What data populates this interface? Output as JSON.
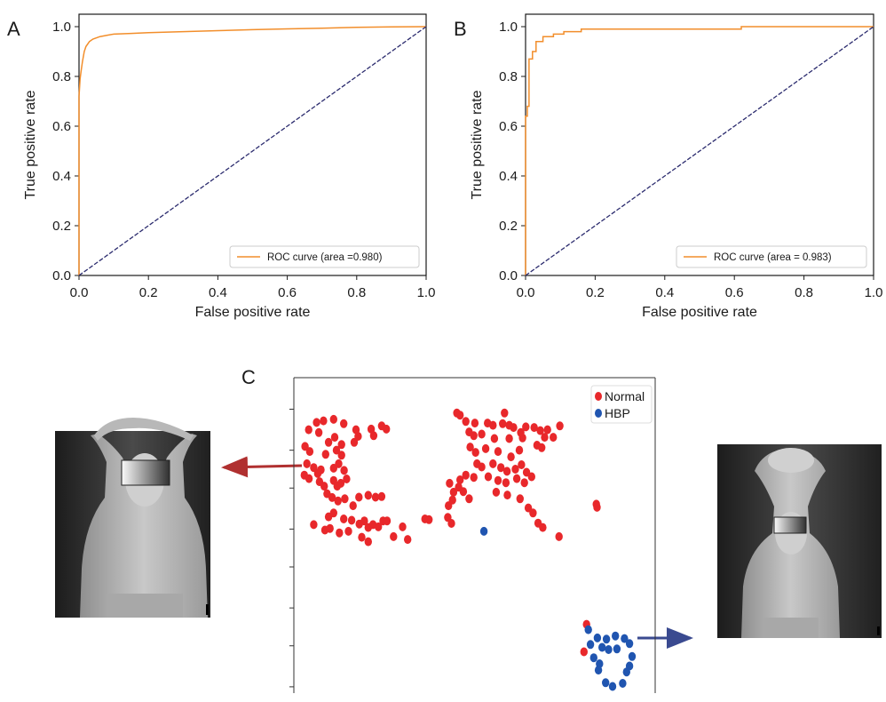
{
  "chart_data": [
    {
      "type": "line",
      "panel_label": "A",
      "xlabel": "False positive rate",
      "ylabel": "True positive rate",
      "xlim": [
        0.0,
        1.0
      ],
      "ylim": [
        0.0,
        1.05
      ],
      "xticks": [
        "0.0",
        "0.2",
        "0.4",
        "0.6",
        "0.8",
        "1.0"
      ],
      "yticks": [
        "0.0",
        "0.2",
        "0.4",
        "0.6",
        "0.8",
        "1.0"
      ],
      "legend": "ROC curve (area =0.980)",
      "legend_position": "lower-right",
      "series": [
        {
          "name": "ROC curve (area =0.980)",
          "color": "#f28e2b",
          "x": [
            0.0,
            0.0,
            0.003,
            0.006,
            0.01,
            0.015,
            0.02,
            0.03,
            0.04,
            0.06,
            0.08,
            0.1,
            0.15,
            0.2,
            0.3,
            0.4,
            0.5,
            0.6,
            0.7,
            0.8,
            0.9,
            1.0
          ],
          "y": [
            0.0,
            0.72,
            0.79,
            0.82,
            0.86,
            0.9,
            0.92,
            0.94,
            0.95,
            0.96,
            0.965,
            0.97,
            0.973,
            0.976,
            0.98,
            0.984,
            0.988,
            0.991,
            0.994,
            0.997,
            0.999,
            1.0
          ]
        },
        {
          "name": "",
          "color": "#2b2b6e",
          "style": "dashed",
          "x": [
            0.0,
            1.0
          ],
          "y": [
            0.0,
            1.0
          ]
        }
      ]
    },
    {
      "type": "line",
      "panel_label": "B",
      "xlabel": "False positive rate",
      "ylabel": "True positive rate",
      "xlim": [
        0.0,
        1.0
      ],
      "ylim": [
        0.0,
        1.05
      ],
      "xticks": [
        "0.0",
        "0.2",
        "0.4",
        "0.6",
        "0.8",
        "1.0"
      ],
      "yticks": [
        "0.0",
        "0.2",
        "0.4",
        "0.6",
        "0.8",
        "1.0"
      ],
      "legend": "ROC curve (area = 0.983)",
      "legend_position": "lower-right",
      "series": [
        {
          "name": "ROC curve (area = 0.983)",
          "color": "#f28e2b",
          "x": [
            0.0,
            0.0,
            0.005,
            0.005,
            0.01,
            0.01,
            0.02,
            0.02,
            0.03,
            0.03,
            0.05,
            0.05,
            0.08,
            0.08,
            0.11,
            0.11,
            0.16,
            0.16,
            0.62,
            0.62,
            1.0
          ],
          "y": [
            0.0,
            0.64,
            0.64,
            0.68,
            0.68,
            0.87,
            0.87,
            0.9,
            0.9,
            0.94,
            0.94,
            0.96,
            0.96,
            0.97,
            0.97,
            0.98,
            0.98,
            0.99,
            0.99,
            1.0,
            1.0
          ]
        },
        {
          "name": "",
          "color": "#2b2b6e",
          "style": "dashed",
          "x": [
            0.0,
            1.0
          ],
          "y": [
            0.0,
            1.0
          ]
        }
      ]
    },
    {
      "type": "scatter",
      "panel_label": "C",
      "legend_position": "top-right",
      "xlim": [
        0,
        100
      ],
      "ylim": [
        0,
        100
      ],
      "series": [
        {
          "name": "Normal",
          "color": "#e8282b",
          "points": [
            [
              45.1,
              88.8
            ],
            [
              46.0,
              88.1
            ],
            [
              58.3,
              88.8
            ],
            [
              47.6,
              86.1
            ],
            [
              50.1,
              85.6
            ],
            [
              53.6,
              85.6
            ],
            [
              55.1,
              84.9
            ],
            [
              57.8,
              85.4
            ],
            [
              59.6,
              84.9
            ],
            [
              60.8,
              84.2
            ],
            [
              64.2,
              84.4
            ],
            [
              66.5,
              84.2
            ],
            [
              68.2,
              83.2
            ],
            [
              70.2,
              83.5
            ],
            [
              73.6,
              84.7
            ],
            [
              48.5,
              82.8
            ],
            [
              49.8,
              81.6
            ],
            [
              52.0,
              82.1
            ],
            [
              55.5,
              80.7
            ],
            [
              59.6,
              80.7
            ],
            [
              63.3,
              80.9
            ],
            [
              62.8,
              82.6
            ],
            [
              69.4,
              81.1
            ],
            [
              71.8,
              81.1
            ],
            [
              48.8,
              78.0
            ],
            [
              50.3,
              76.3
            ],
            [
              53.1,
              77.5
            ],
            [
              56.5,
              76.6
            ],
            [
              60.1,
              74.9
            ],
            [
              62.4,
              77.0
            ],
            [
              67.3,
              78.6
            ],
            [
              68.6,
              77.8
            ],
            [
              50.7,
              72.7
            ],
            [
              52.0,
              71.7
            ],
            [
              55.1,
              72.7
            ],
            [
              57.3,
              71.5
            ],
            [
              59.0,
              70.3
            ],
            [
              61.3,
              71.0
            ],
            [
              63.0,
              72.4
            ],
            [
              64.4,
              70.0
            ],
            [
              47.6,
              69.1
            ],
            [
              49.8,
              68.4
            ],
            [
              53.8,
              68.6
            ],
            [
              56.5,
              67.4
            ],
            [
              58.7,
              66.7
            ],
            [
              61.7,
              68.0
            ],
            [
              63.8,
              66.7
            ],
            [
              65.8,
              68.6
            ],
            [
              56.0,
              63.7
            ],
            [
              59.1,
              62.8
            ],
            [
              62.6,
              61.6
            ],
            [
              64.9,
              58.7
            ],
            [
              66.2,
              57.1
            ],
            [
              67.6,
              53.9
            ],
            [
              68.9,
              52.5
            ],
            [
              73.4,
              49.6
            ],
            [
              46.9,
              63.9
            ],
            [
              48.5,
              61.6
            ],
            [
              6.3,
              85.8
            ],
            [
              8.2,
              86.3
            ],
            [
              11.0,
              86.8
            ],
            [
              13.8,
              85.4
            ],
            [
              17.2,
              83.5
            ],
            [
              21.4,
              83.7
            ],
            [
              24.3,
              84.7
            ],
            [
              25.6,
              83.7
            ],
            [
              4.1,
              83.5
            ],
            [
              6.9,
              82.6
            ],
            [
              9.6,
              79.5
            ],
            [
              11.3,
              81.1
            ],
            [
              13.2,
              78.8
            ],
            [
              16.7,
              79.5
            ],
            [
              17.8,
              81.4
            ],
            [
              22.1,
              81.6
            ],
            [
              3.1,
              78.2
            ],
            [
              4.4,
              76.6
            ],
            [
              8.8,
              75.7
            ],
            [
              11.8,
              77.0
            ],
            [
              13.2,
              75.4
            ],
            [
              3.6,
              72.7
            ],
            [
              5.5,
              71.5
            ],
            [
              6.6,
              69.6
            ],
            [
              7.5,
              70.8
            ],
            [
              11.0,
              71.3
            ],
            [
              12.4,
              72.7
            ],
            [
              13.9,
              70.6
            ],
            [
              2.9,
              69.1
            ],
            [
              4.2,
              68.0
            ],
            [
              7.1,
              67.0
            ],
            [
              8.4,
              65.6
            ],
            [
              11.0,
              67.4
            ],
            [
              12.0,
              65.6
            ],
            [
              13.0,
              66.5
            ],
            [
              14.6,
              67.9
            ],
            [
              9.2,
              63.2
            ],
            [
              10.6,
              62.0
            ],
            [
              12.2,
              60.9
            ],
            [
              14.1,
              61.6
            ],
            [
              16.4,
              59.4
            ],
            [
              18.0,
              62.1
            ],
            [
              20.6,
              62.7
            ],
            [
              22.6,
              62.1
            ],
            [
              24.3,
              62.3
            ],
            [
              9.6,
              55.9
            ],
            [
              11.0,
              57.1
            ],
            [
              13.8,
              55.2
            ],
            [
              16.0,
              54.8
            ],
            [
              18.1,
              53.6
            ],
            [
              19.5,
              54.6
            ],
            [
              20.6,
              52.5
            ],
            [
              21.9,
              53.4
            ],
            [
              23.4,
              52.7
            ],
            [
              5.5,
              53.4
            ],
            [
              8.6,
              51.7
            ],
            [
              10.0,
              52.2
            ],
            [
              12.6,
              50.8
            ],
            [
              15.1,
              51.3
            ],
            [
              18.8,
              49.4
            ],
            [
              20.6,
              48.0
            ],
            [
              24.7,
              54.6
            ],
            [
              25.8,
              54.6
            ],
            [
              27.6,
              49.6
            ],
            [
              31.5,
              48.7
            ],
            [
              30.1,
              52.7
            ],
            [
              43.1,
              66.5
            ],
            [
              45.6,
              65.3
            ],
            [
              44.2,
              63.7
            ],
            [
              46.0,
              67.6
            ],
            [
              42.8,
              59.4
            ],
            [
              43.9,
              61.2
            ],
            [
              42.6,
              55.7
            ],
            [
              43.6,
              53.8
            ],
            [
              36.3,
              55.2
            ],
            [
              37.4,
              55.0
            ],
            [
              83.7,
              59.9
            ],
            [
              83.9,
              58.9
            ],
            [
              81.0,
              21.8
            ],
            [
              80.3,
              13.1
            ]
          ]
        },
        {
          "name": "HBP",
          "color": "#2055b0",
          "points": [
            [
              52.6,
              51.3
            ],
            [
              81.5,
              20.1
            ],
            [
              84.0,
              17.5
            ],
            [
              86.5,
              17.1
            ],
            [
              89.0,
              18.1
            ],
            [
              91.5,
              17.3
            ],
            [
              82.1,
              15.4
            ],
            [
              85.3,
              14.5
            ],
            [
              87.1,
              13.8
            ],
            [
              89.4,
              14.0
            ],
            [
              92.9,
              15.7
            ],
            [
              83.0,
              11.2
            ],
            [
              84.6,
              9.3
            ],
            [
              93.6,
              11.6
            ],
            [
              92.9,
              8.6
            ],
            [
              92.1,
              6.7
            ],
            [
              84.3,
              7.3
            ],
            [
              86.3,
              3.3
            ],
            [
              88.2,
              2.1
            ],
            [
              91.0,
              3.1
            ]
          ]
        }
      ]
    }
  ],
  "photos": {
    "left_alt": "thermal image - normal",
    "right_alt": "thermal image - HBP"
  }
}
